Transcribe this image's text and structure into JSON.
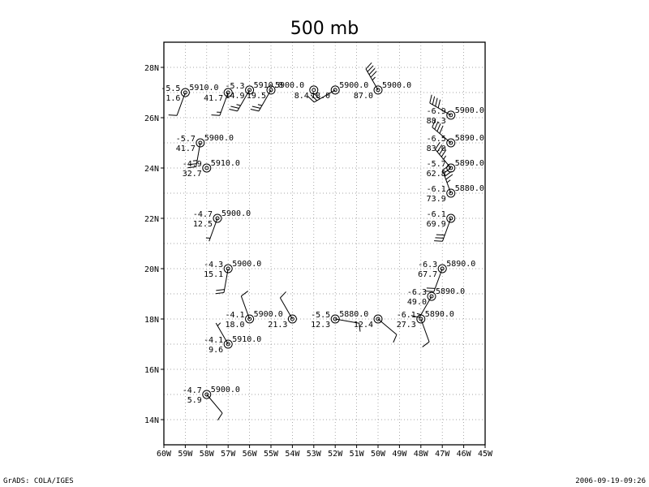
{
  "title": "500 mb",
  "footer": {
    "left": "GrADS: COLA/IGES",
    "right": "2006-09-19-09:26"
  },
  "axes": {
    "x_range": [
      -60,
      -45
    ],
    "y_range": [
      13,
      29
    ],
    "x_ticks": [
      "60W",
      "59W",
      "58W",
      "57W",
      "56W",
      "55W",
      "54W",
      "53W",
      "52W",
      "51W",
      "50W",
      "49W",
      "48W",
      "47W",
      "46W",
      "45W"
    ],
    "y_ticks": [
      "14N",
      "16N",
      "18N",
      "20N",
      "22N",
      "24N",
      "26N",
      "28N"
    ],
    "grid": true
  },
  "stations": [
    {
      "lon": -59.0,
      "lat": 27.0,
      "temp": "-5.5",
      "height": "5910.0",
      "dew": "1.6"
    },
    {
      "lon": -57.0,
      "lat": 27.0,
      "temp": "",
      "height": "",
      "dew": "41.7"
    },
    {
      "lon": -56.0,
      "lat": 27.1,
      "temp": "-5.3",
      "height": "5910.0",
      "dew": "14.9"
    },
    {
      "lon": -55.0,
      "lat": 27.1,
      "temp": "",
      "height": "5900.0",
      "dew": "19.5"
    },
    {
      "lon": -53.0,
      "lat": 27.1,
      "temp": "",
      "height": "",
      "dew": "8.4"
    },
    {
      "lon": -52.0,
      "lat": 27.1,
      "temp": "",
      "height": "5900.0",
      "dew": "18.0"
    },
    {
      "lon": -50.0,
      "lat": 27.1,
      "temp": "",
      "height": "5900.0",
      "dew": "87.0"
    },
    {
      "lon": -46.6,
      "lat": 26.1,
      "temp": "-6.9",
      "height": "5900.0",
      "dew": "88.3"
    },
    {
      "lon": -46.6,
      "lat": 25.0,
      "temp": "-6.5",
      "height": "5890.0",
      "dew": "83.0"
    },
    {
      "lon": -46.6,
      "lat": 24.0,
      "temp": "-5.7",
      "height": "5890.0",
      "dew": "62.8"
    },
    {
      "lon": -46.6,
      "lat": 23.0,
      "temp": "-6.1",
      "height": "5880.0",
      "dew": "73.9"
    },
    {
      "lon": -46.6,
      "lat": 22.0,
      "temp": "-6.1",
      "height": "",
      "dew": "69.9"
    },
    {
      "lon": -47.0,
      "lat": 20.0,
      "temp": "-6.3",
      "height": "5890.0",
      "dew": "67.7"
    },
    {
      "lon": -47.5,
      "lat": 18.9,
      "temp": "-6.3",
      "height": "5890.0",
      "dew": "49.0"
    },
    {
      "lon": -48.0,
      "lat": 18.0,
      "temp": "-6.1",
      "height": "5890.0",
      "dew": "27.3"
    },
    {
      "lon": -50.0,
      "lat": 18.0,
      "temp": "",
      "height": "",
      "dew": "12.4"
    },
    {
      "lon": -52.0,
      "lat": 18.0,
      "temp": "-5.5",
      "height": "5880.0",
      "dew": "12.3"
    },
    {
      "lon": -54.0,
      "lat": 18.0,
      "temp": "",
      "height": "",
      "dew": "21.3"
    },
    {
      "lon": -56.0,
      "lat": 18.0,
      "temp": "-4.1",
      "height": "5900.0",
      "dew": "18.0"
    },
    {
      "lon": -57.0,
      "lat": 17.0,
      "temp": "-4.1",
      "height": "5910.0",
      "dew": "9.6"
    },
    {
      "lon": -58.0,
      "lat": 15.0,
      "temp": "-4.7",
      "height": "5900.0",
      "dew": "5.9"
    },
    {
      "lon": -58.0,
      "lat": 24.0,
      "temp": "-4.9",
      "height": "5910.0",
      "dew": "32.7"
    },
    {
      "lon": -58.3,
      "lat": 25.0,
      "temp": "-5.7",
      "height": "5900.0",
      "dew": "41.7"
    },
    {
      "lon": -57.5,
      "lat": 22.0,
      "temp": "-4.7",
      "height": "5900.0",
      "dew": "12.5"
    },
    {
      "lon": -57.0,
      "lat": 20.0,
      "temp": "-4.3",
      "height": "5900.0",
      "dew": "15.1"
    }
  ],
  "barbs": [
    {
      "lon": -59.0,
      "lat": 27.0,
      "dir": 200,
      "spd": 10
    },
    {
      "lon": -57.0,
      "lat": 27.0,
      "dir": 200,
      "spd": 15
    },
    {
      "lon": -56.0,
      "lat": 27.1,
      "dir": 210,
      "spd": 25
    },
    {
      "lon": -55.0,
      "lat": 27.1,
      "dir": 210,
      "spd": 25
    },
    {
      "lon": -52.0,
      "lat": 27.1,
      "dir": 240,
      "spd": 30
    },
    {
      "lon": -50.0,
      "lat": 27.1,
      "dir": 330,
      "spd": 45
    },
    {
      "lon": -46.6,
      "lat": 26.1,
      "dir": 300,
      "spd": 40
    },
    {
      "lon": -46.6,
      "lat": 25.0,
      "dir": 310,
      "spd": 40
    },
    {
      "lon": -46.6,
      "lat": 24.0,
      "dir": 320,
      "spd": 45
    },
    {
      "lon": -46.6,
      "lat": 23.0,
      "dir": 340,
      "spd": 45
    },
    {
      "lon": -46.6,
      "lat": 22.0,
      "dir": 200,
      "spd": 30
    },
    {
      "lon": -47.0,
      "lat": 20.0,
      "dir": 200,
      "spd": 20
    },
    {
      "lon": -47.5,
      "lat": 18.9,
      "dir": 210,
      "spd": 15
    },
    {
      "lon": -48.0,
      "lat": 18.0,
      "dir": 160,
      "spd": 10
    },
    {
      "lon": -50.0,
      "lat": 18.0,
      "dir": 130,
      "spd": 10
    },
    {
      "lon": -52.0,
      "lat": 18.0,
      "dir": 100,
      "spd": 10
    },
    {
      "lon": -54.0,
      "lat": 18.0,
      "dir": 330,
      "spd": 10
    },
    {
      "lon": -56.0,
      "lat": 18.0,
      "dir": 340,
      "spd": 10
    },
    {
      "lon": -57.0,
      "lat": 17.0,
      "dir": 330,
      "spd": 5
    },
    {
      "lon": -58.0,
      "lat": 15.0,
      "dir": 140,
      "spd": 10
    },
    {
      "lon": -58.3,
      "lat": 25.0,
      "dir": 190,
      "spd": 25
    },
    {
      "lon": -57.5,
      "lat": 22.0,
      "dir": 200,
      "spd": 5
    },
    {
      "lon": -57.0,
      "lat": 20.0,
      "dir": 190,
      "spd": 20
    }
  ]
}
